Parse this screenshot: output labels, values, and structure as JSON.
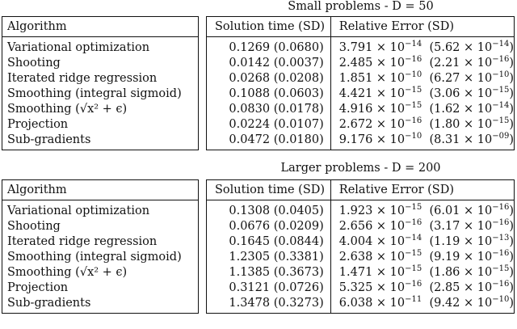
{
  "sections": [
    {
      "caption": "Small problems - D = 50",
      "algo_header": "Algorithm",
      "time_header": "Solution time (SD)",
      "error_header": "Relative Error (SD)",
      "rows": [
        {
          "algorithm": "Variational optimization",
          "time": "0.1269 (0.0680)",
          "error_mantissa": "3.791 × 10",
          "error_exp": "−14",
          "sd_mantissa": "(5.62 × 10",
          "sd_exp": "−14",
          "sd_close": ")"
        },
        {
          "algorithm": "Shooting",
          "time": "0.0142 (0.0037)",
          "error_mantissa": "2.485 × 10",
          "error_exp": "−16",
          "sd_mantissa": "(2.21 × 10",
          "sd_exp": "−16",
          "sd_close": ")"
        },
        {
          "algorithm": "Iterated ridge regression",
          "time": "0.0268 (0.0208)",
          "error_mantissa": "1.851 × 10",
          "error_exp": "−10",
          "sd_mantissa": "(6.27 × 10",
          "sd_exp": "−10",
          "sd_close": ")"
        },
        {
          "algorithm": "Smoothing (integral sigmoid)",
          "time": "0.1088 (0.0603)",
          "error_mantissa": "4.421 × 10",
          "error_exp": "−15",
          "sd_mantissa": "(3.06 × 10",
          "sd_exp": "−15",
          "sd_close": ")"
        },
        {
          "algorithm": "Smoothing (√x² + ϵ)",
          "time": "0.0830 (0.0178)",
          "error_mantissa": "4.916 × 10",
          "error_exp": "−15",
          "sd_mantissa": "(1.62 × 10",
          "sd_exp": "−14",
          "sd_close": ")"
        },
        {
          "algorithm": "Projection",
          "time": "0.0224 (0.0107)",
          "error_mantissa": "2.672 × 10",
          "error_exp": "−16",
          "sd_mantissa": "(1.80 × 10",
          "sd_exp": "−15",
          "sd_close": ")"
        },
        {
          "algorithm": "Sub-gradients",
          "time": "0.0472 (0.0180)",
          "error_mantissa": "9.176 × 10",
          "error_exp": "−10",
          "sd_mantissa": "(8.31 × 10",
          "sd_exp": "−09",
          "sd_close": ")"
        }
      ]
    },
    {
      "caption": "Larger problems - D = 200",
      "algo_header": "Algorithm",
      "time_header": "Solution time (SD)",
      "error_header": "Relative Error (SD)",
      "rows": [
        {
          "algorithm": "Variational optimization",
          "time": "0.1308 (0.0405)",
          "error_mantissa": "1.923 × 10",
          "error_exp": "−15",
          "sd_mantissa": "(6.01 × 10",
          "sd_exp": "−16",
          "sd_close": ")"
        },
        {
          "algorithm": "Shooting",
          "time": "0.0676 (0.0209)",
          "error_mantissa": "2.656 × 10",
          "error_exp": "−16",
          "sd_mantissa": "(3.17 × 10",
          "sd_exp": "−16",
          "sd_close": ")"
        },
        {
          "algorithm": "Iterated ridge regression",
          "time": "0.1645 (0.0844)",
          "error_mantissa": "4.004 × 10",
          "error_exp": "−14",
          "sd_mantissa": "(1.19 × 10",
          "sd_exp": "−13",
          "sd_close": ")"
        },
        {
          "algorithm": "Smoothing (integral sigmoid)",
          "time": "1.2305 (0.3381)",
          "error_mantissa": "2.638 × 10",
          "error_exp": "−15",
          "sd_mantissa": "(9.19 × 10",
          "sd_exp": "−16",
          "sd_close": ")"
        },
        {
          "algorithm": "Smoothing (√x² + ϵ)",
          "time": "1.1385 (0.3673)",
          "error_mantissa": "1.471 × 10",
          "error_exp": "−15",
          "sd_mantissa": "(1.86 × 10",
          "sd_exp": "−15",
          "sd_close": ")"
        },
        {
          "algorithm": "Projection",
          "time": "0.3121 (0.0726)",
          "error_mantissa": "5.325 × 10",
          "error_exp": "−16",
          "sd_mantissa": "(2.85 × 10",
          "sd_exp": "−16",
          "sd_close": ")"
        },
        {
          "algorithm": "Sub-gradients",
          "time": "1.3478 (0.3273)",
          "error_mantissa": "6.038 × 10",
          "error_exp": "−11",
          "sd_mantissa": "(9.42 × 10",
          "sd_exp": "−10",
          "sd_close": ")"
        }
      ]
    }
  ]
}
